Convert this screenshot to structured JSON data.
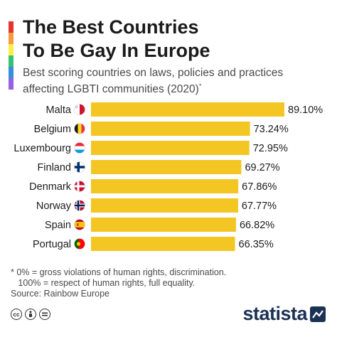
{
  "title_line1": "The Best Countries",
  "title_line2": "To Be Gay In Europe",
  "subtitle_line1": "Best scoring countries on laws, policies and practices",
  "subtitle_line2": "affecting LGBTI communities (2020)",
  "subtitle_mark": "*",
  "footnote_line1": "* 0% = gross violations of human rights, discrimination.",
  "footnote_line2": "   100% = respect of human rights, full equality.",
  "source": "Source: Rainbow Europe",
  "brand": "statista",
  "icons": [
    "creative-commons-icon",
    "attribution-icon",
    "no-derivatives-icon"
  ],
  "colors": {
    "bar": "#f3c623",
    "brand": "#1c3254",
    "text": "#1c1c1c"
  },
  "rainbow_colors": [
    "#e3342f",
    "#f6993f",
    "#ffed4a",
    "#38c172",
    "#3490dc",
    "#9561e2"
  ],
  "chart_data": {
    "type": "bar",
    "orientation": "horizontal",
    "categories": [
      "Malta",
      "Belgium",
      "Luxembourg",
      "Finland",
      "Denmark",
      "Norway",
      "Spain",
      "Portugal"
    ],
    "values": [
      89.1,
      73.24,
      72.95,
      69.27,
      67.86,
      67.77,
      66.82,
      66.35
    ],
    "value_labels": [
      "89.10%",
      "73.24%",
      "72.95%",
      "69.27%",
      "67.86%",
      "67.77%",
      "66.82%",
      "66.35%"
    ],
    "flags": [
      "malta",
      "belgium",
      "luxembourg",
      "finland",
      "denmark",
      "norway",
      "spain",
      "portugal"
    ],
    "xlim": [
      0,
      89.1
    ],
    "grid": false,
    "legend": "none"
  }
}
